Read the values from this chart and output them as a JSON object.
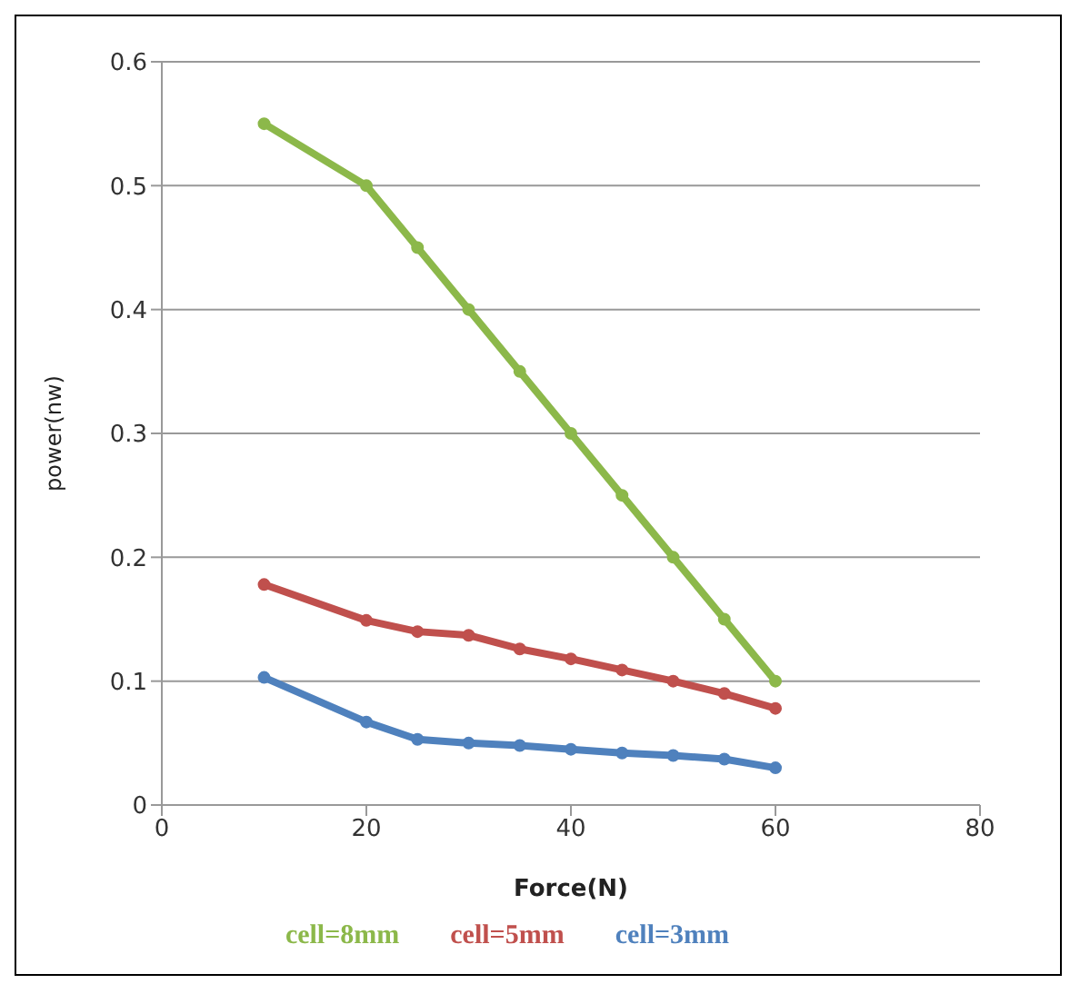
{
  "chart_data": {
    "type": "line",
    "xlabel": "Force(N)",
    "ylabel": "power(nw)",
    "x": [
      10,
      20,
      25,
      30,
      35,
      40,
      45,
      50,
      55,
      60
    ],
    "series": [
      {
        "name": "cell=8mm",
        "color": "#8cb84a",
        "values": [
          0.55,
          0.5,
          0.45,
          0.4,
          0.35,
          0.3,
          0.25,
          0.2,
          0.15,
          0.1
        ]
      },
      {
        "name": "cell=5mm",
        "color": "#c0504d",
        "values": [
          0.178,
          0.149,
          0.14,
          0.137,
          0.126,
          0.118,
          0.109,
          0.1,
          0.09,
          0.078
        ]
      },
      {
        "name": "cell=3mm",
        "color": "#4f81bd",
        "values": [
          0.103,
          0.067,
          0.053,
          0.05,
          0.048,
          0.045,
          0.042,
          0.04,
          0.037,
          0.03
        ]
      }
    ],
    "xlim": [
      0,
      80
    ],
    "xticks": [
      0,
      20,
      40,
      60,
      80
    ],
    "ylim": [
      0,
      0.6
    ],
    "yticks": [
      0,
      0.1,
      0.2,
      0.3,
      0.4,
      0.5,
      0.6
    ],
    "grid": "y",
    "legend": "bottom",
    "marker": "circle",
    "line_style": "solid"
  }
}
